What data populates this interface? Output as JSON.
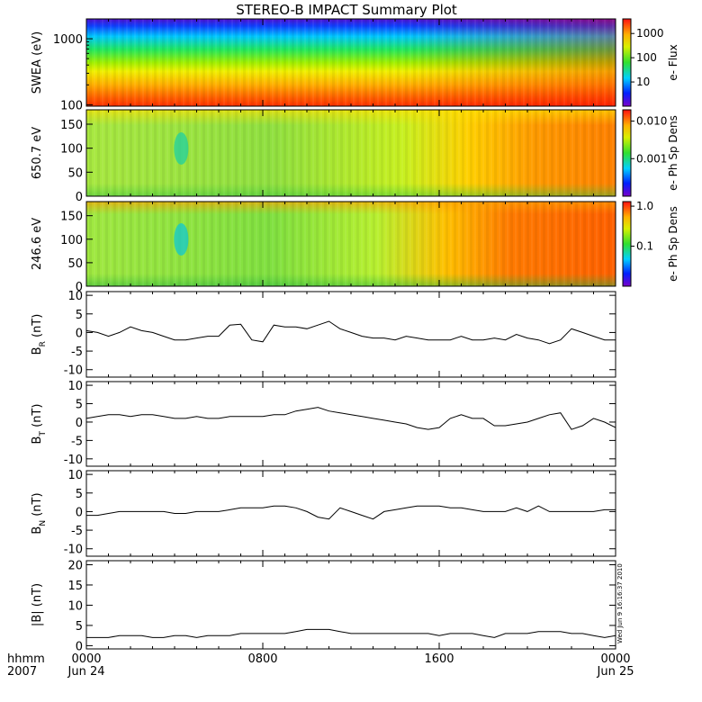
{
  "title": "STEREO-B IMPACT Summary Plot",
  "footer": {
    "axis_caption_line1": "hhmm",
    "axis_caption_line2": "2007",
    "stamp": "Wed Jun  9 16:16:37 2010"
  },
  "chart_data": [
    {
      "type": "heatmap",
      "name": "swea",
      "ylabel": "SWEA (eV)",
      "yscale": "log",
      "ylim": [
        95,
        2000
      ],
      "yticks": [
        "1000",
        "100"
      ],
      "colorbar_label": "e- Flux",
      "colorbar_ticks": [
        "1000",
        "100",
        "10"
      ],
      "colorbar_range": [
        1,
        4000
      ],
      "rows_top_to_bottom": [
        "purple-blue",
        "blue",
        "cyan",
        "green",
        "yellow-green",
        "yellow",
        "orange",
        "red"
      ]
    },
    {
      "type": "heatmap",
      "name": "pad_650",
      "ylabel": "650.7 eV",
      "ylim": [
        0,
        180
      ],
      "yticks": [
        "150",
        "100",
        "50",
        "0"
      ],
      "colorbar_label": "e- Ph Sp Dens",
      "colorbar_ticks": [
        "0.010",
        "0.001"
      ],
      "colorbar_range": [
        0.0001,
        0.02
      ]
    },
    {
      "type": "heatmap",
      "name": "pad_246",
      "ylabel": "246.6 eV",
      "ylim": [
        0,
        180
      ],
      "yticks": [
        "150",
        "100",
        "50",
        "0"
      ],
      "colorbar_label": "e- Ph Sp Dens",
      "colorbar_ticks": [
        "1.0",
        "0.1"
      ],
      "colorbar_range": [
        0.01,
        1.3
      ]
    },
    {
      "type": "line",
      "name": "br",
      "ylabel_main": "B",
      "ylabel_sub": "R",
      "ylabel_tail": " (nT)",
      "ylim": [
        -12,
        11
      ],
      "yticks": [
        "10",
        "5",
        "0",
        "-5",
        "-10"
      ],
      "x_hours": [
        0,
        0.5,
        1,
        1.5,
        2,
        2.5,
        3,
        3.5,
        4,
        4.5,
        5,
        5.5,
        6,
        6.5,
        7,
        7.5,
        8,
        8.5,
        9,
        9.5,
        10,
        10.5,
        11,
        11.5,
        12,
        12.5,
        13,
        13.5,
        14,
        14.5,
        15,
        15.5,
        16,
        16.5,
        17,
        17.5,
        18,
        18.5,
        19,
        19.5,
        20,
        20.5,
        21,
        21.5,
        22,
        22.5,
        23,
        23.5,
        24
      ],
      "values": [
        0.5,
        0,
        -1,
        0,
        1.5,
        0.5,
        0,
        -1,
        -2,
        -2,
        -1.5,
        -1,
        -1,
        2,
        2.2,
        -2,
        -2.5,
        2,
        1.5,
        1.5,
        1,
        2,
        3,
        1,
        0,
        -1,
        -1.5,
        -1.5,
        -2,
        -1,
        -1.5,
        -2,
        -2,
        -2,
        -1,
        -2,
        -2,
        -1.5,
        -2,
        -0.5,
        -1.5,
        -2,
        -3,
        -2,
        1,
        0,
        -1,
        -2,
        -2
      ]
    },
    {
      "type": "line",
      "name": "bt",
      "ylabel_main": "B",
      "ylabel_sub": "T",
      "ylabel_tail": " (nT)",
      "ylim": [
        -12,
        11
      ],
      "yticks": [
        "10",
        "5",
        "0",
        "-5",
        "-10"
      ],
      "x_hours": [
        0,
        0.5,
        1,
        1.5,
        2,
        2.5,
        3,
        3.5,
        4,
        4.5,
        5,
        5.5,
        6,
        6.5,
        7,
        7.5,
        8,
        8.5,
        9,
        9.5,
        10,
        10.5,
        11,
        11.5,
        12,
        12.5,
        13,
        13.5,
        14,
        14.5,
        15,
        15.5,
        16,
        16.5,
        17,
        17.5,
        18,
        18.5,
        19,
        19.5,
        20,
        20.5,
        21,
        21.5,
        22,
        22.5,
        23,
        23.5,
        24
      ],
      "values": [
        1,
        1.5,
        2,
        2,
        1.5,
        2,
        2,
        1.5,
        1,
        1,
        1.5,
        1,
        1,
        1.5,
        1.5,
        1.5,
        1.5,
        2,
        2,
        3,
        3.5,
        4,
        3,
        2.5,
        2,
        1.5,
        1,
        0.5,
        0,
        -0.5,
        -1.5,
        -2,
        -1.5,
        1,
        2,
        1,
        1,
        -1,
        -1,
        -0.5,
        0,
        1,
        2,
        2.5,
        -2,
        -1,
        1,
        0,
        -1.5
      ]
    },
    {
      "type": "line",
      "name": "bn",
      "ylabel_main": "B",
      "ylabel_sub": "N",
      "ylabel_tail": " (nT)",
      "ylim": [
        -12,
        11
      ],
      "yticks": [
        "10",
        "5",
        "0",
        "-5",
        "-10"
      ],
      "x_hours": [
        0,
        0.5,
        1,
        1.5,
        2,
        2.5,
        3,
        3.5,
        4,
        4.5,
        5,
        5.5,
        6,
        6.5,
        7,
        7.5,
        8,
        8.5,
        9,
        9.5,
        10,
        10.5,
        11,
        11.5,
        12,
        12.5,
        13,
        13.5,
        14,
        14.5,
        15,
        15.5,
        16,
        16.5,
        17,
        17.5,
        18,
        18.5,
        19,
        19.5,
        20,
        20.5,
        21,
        21.5,
        22,
        22.5,
        23,
        23.5,
        24
      ],
      "values": [
        -1,
        -1,
        -0.5,
        0,
        0,
        0,
        0,
        0,
        -0.5,
        -0.5,
        0,
        0,
        0,
        0.5,
        1,
        1,
        1,
        1.5,
        1.5,
        1,
        0,
        -1.5,
        -2,
        1,
        0,
        -1,
        -2,
        0,
        0.5,
        1,
        1.5,
        1.5,
        1.5,
        1,
        1,
        0.5,
        0,
        0,
        0,
        1,
        0,
        1.5,
        0,
        0,
        0,
        0,
        0,
        0.5,
        0.5
      ]
    },
    {
      "type": "line",
      "name": "bmag",
      "ylabel_main": "|B| (nT)",
      "ylim": [
        -0.8,
        21
      ],
      "yticks": [
        "20",
        "15",
        "10",
        "5",
        "0"
      ],
      "x_hours": [
        0,
        0.5,
        1,
        1.5,
        2,
        2.5,
        3,
        3.5,
        4,
        4.5,
        5,
        5.5,
        6,
        6.5,
        7,
        7.5,
        8,
        8.5,
        9,
        9.5,
        10,
        10.5,
        11,
        11.5,
        12,
        12.5,
        13,
        13.5,
        14,
        14.5,
        15,
        15.5,
        16,
        16.5,
        17,
        17.5,
        18,
        18.5,
        19,
        19.5,
        20,
        20.5,
        21,
        21.5,
        22,
        22.5,
        23,
        23.5,
        24
      ],
      "values": [
        2,
        2,
        2,
        2.5,
        2.5,
        2.5,
        2,
        2,
        2.5,
        2.5,
        2,
        2.5,
        2.5,
        2.5,
        3,
        3,
        3,
        3,
        3,
        3.5,
        4,
        4,
        4,
        3.5,
        3,
        3,
        3,
        3,
        3,
        3,
        3,
        3,
        2.5,
        3,
        3,
        3,
        2.5,
        2,
        3,
        3,
        3,
        3.5,
        3.5,
        3.5,
        3,
        3,
        2.5,
        2,
        2.5
      ]
    }
  ],
  "x_axis": {
    "tick_labels": [
      "0000",
      "0800",
      "1600",
      "0000"
    ],
    "date_labels": [
      "Jun 24",
      "Jun 25"
    ],
    "range_hours": [
      0,
      24
    ]
  }
}
